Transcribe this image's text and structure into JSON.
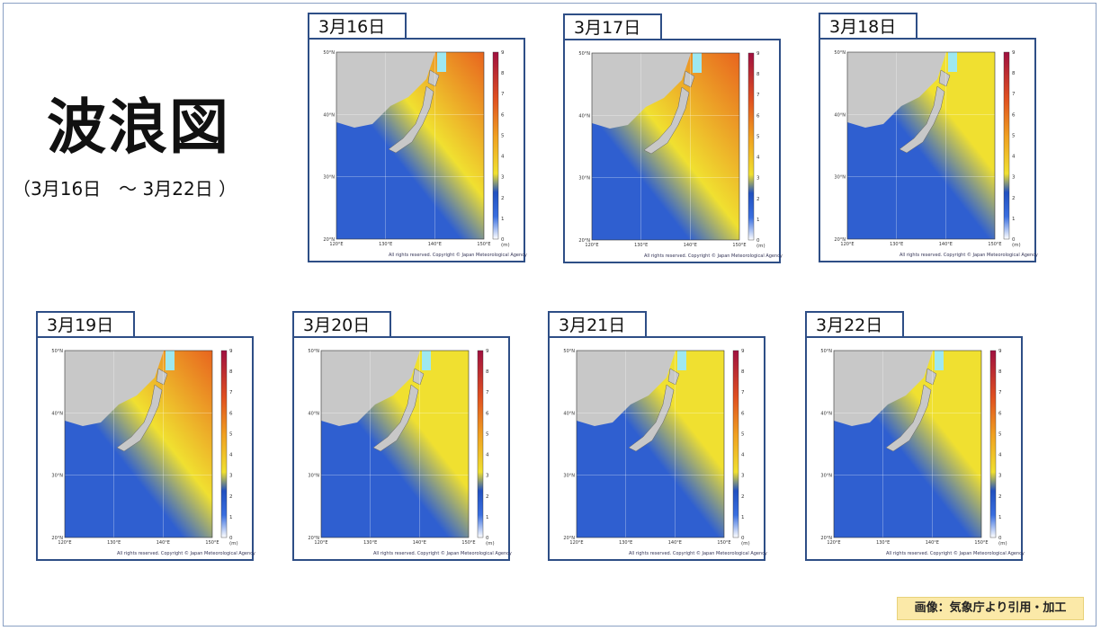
{
  "title": "波浪図",
  "subtitle": "（3月16日　～ 3月22日 ）",
  "credit": "画像：気象庁より引用・加工",
  "copyright": "All rights reserved. Copyright © Japan Meteorological Agency",
  "axis": {
    "lat_labels": [
      "50°N",
      "40°N",
      "30°N",
      "20°N"
    ],
    "lon_labels": [
      "120°E",
      "130°E",
      "140°E",
      "150°E"
    ],
    "colorbar_labels": [
      "9",
      "8",
      "7",
      "6",
      "5",
      "4",
      "3",
      "2",
      "1",
      "0"
    ],
    "colorbar_unit": "(m)"
  },
  "panels": [
    {
      "date": "3月16日",
      "level": 0.45
    },
    {
      "date": "3月17日",
      "level": 0.75
    },
    {
      "date": "3月18日",
      "level": 0.25
    },
    {
      "date": "3月19日",
      "level": 0.5
    },
    {
      "date": "3月20日",
      "level": 0.4
    },
    {
      "date": "3月21日",
      "level": 0.25
    },
    {
      "date": "3月22日",
      "level": 0.3
    }
  ],
  "colors": {
    "land": "#c8c8c8",
    "sea_low": "#2f5fd0",
    "sea_mid": "#f0e030",
    "sea_high": "#e8641e",
    "border": "#2e4e86",
    "credit_bg": "#fbe9a8"
  }
}
